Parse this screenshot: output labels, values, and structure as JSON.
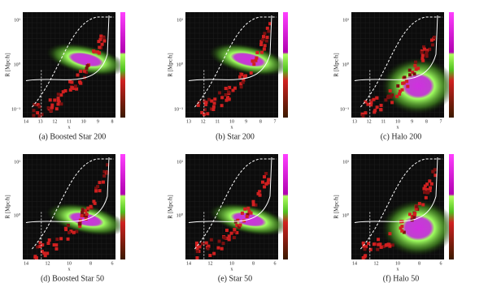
{
  "panels": [
    {
      "caption": "(a) Boosted Star 200",
      "ylabel": "R [Mpc/h]",
      "xlabel": "x",
      "yticks": [
        "10¹",
        "10⁰",
        "10⁻¹"
      ],
      "xticks": [
        "14",
        "13",
        "12",
        "11",
        "10",
        "9",
        "8"
      ]
    },
    {
      "caption": "(b) Star 200",
      "ylabel": "R [Mpc/h]",
      "xlabel": "x",
      "yticks": [
        "10¹",
        "10⁰",
        "10⁻¹"
      ],
      "xticks": [
        "13",
        "12",
        "11",
        "10",
        "9",
        "8",
        "7"
      ]
    },
    {
      "caption": "(c) Halo 200",
      "ylabel": "R [Mpc/h]",
      "xlabel": "x",
      "yticks": [
        "10¹",
        "10⁰",
        "10⁻¹"
      ],
      "xticks": [
        "13",
        "12",
        "11",
        "10",
        "9",
        "8",
        "7"
      ]
    },
    {
      "caption": "(d) Boosted Star 50",
      "ylabel": "R [Mpc/h]",
      "xlabel": "x",
      "yticks": [
        "10¹",
        "10⁰"
      ],
      "xticks": [
        "14",
        "12",
        "10",
        "8",
        "6"
      ]
    },
    {
      "caption": "(e) Star 50",
      "ylabel": "R [Mpc/h]",
      "xlabel": "x",
      "yticks": [
        "10¹",
        "10⁰"
      ],
      "xticks": [
        "14",
        "12",
        "10",
        "8",
        "6"
      ]
    },
    {
      "caption": "(f) Halo 50",
      "ylabel": "R [Mpc/h]",
      "xlabel": "x",
      "yticks": [
        "10¹",
        "10⁰"
      ],
      "xticks": [
        "14",
        "12",
        "10",
        "8",
        "6"
      ]
    }
  ]
}
